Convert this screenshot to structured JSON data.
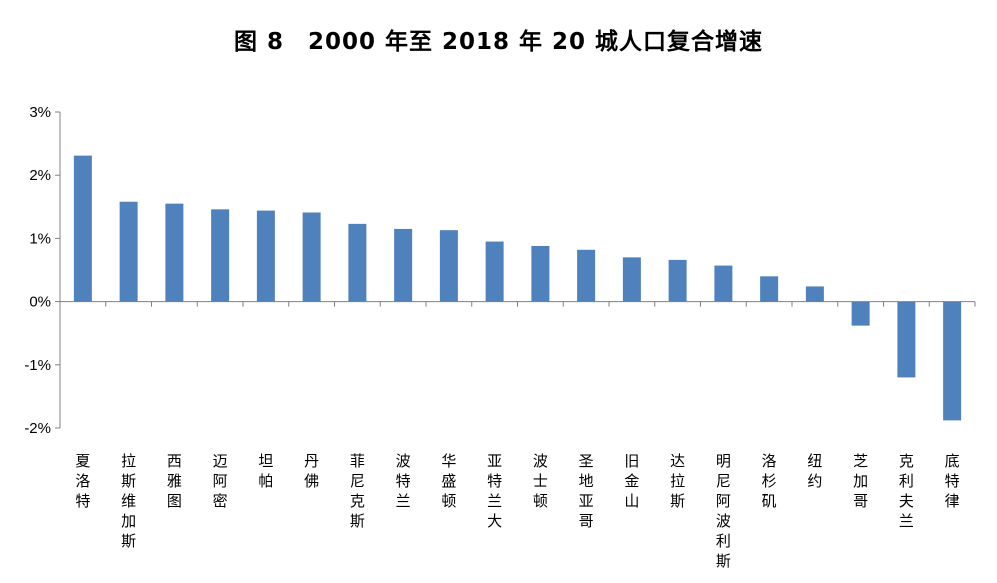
{
  "chart_data": {
    "type": "bar",
    "title": "图 8　2000 年至 2018 年 20 城人口复合增速",
    "xlabel": "",
    "ylabel": "",
    "ylim": [
      -0.02,
      0.03
    ],
    "y_ticks": [
      "3%",
      "2%",
      "1%",
      "0%",
      "-1%",
      "-2%"
    ],
    "y_tick_values": [
      0.03,
      0.02,
      0.01,
      0.0,
      -0.01,
      -0.02
    ],
    "grid": false,
    "color": "#4F81BD",
    "categories": [
      "夏洛特",
      "拉斯维加斯",
      "西雅图",
      "迈阿密",
      "坦帕",
      "丹佛",
      "菲尼克斯",
      "波特兰",
      "华盛顿",
      "亚特兰大",
      "波士顿",
      "圣地亚哥",
      "旧金山",
      "达拉斯",
      "明尼阿波利斯",
      "洛杉矶",
      "纽约",
      "芝加哥",
      "克利夫兰",
      "底特律"
    ],
    "values": [
      0.0231,
      0.0158,
      0.0155,
      0.0146,
      0.0144,
      0.0141,
      0.0123,
      0.0115,
      0.0113,
      0.0095,
      0.0088,
      0.0082,
      0.007,
      0.0066,
      0.0057,
      0.004,
      0.0024,
      -0.0038,
      -0.012,
      -0.0188
    ]
  }
}
